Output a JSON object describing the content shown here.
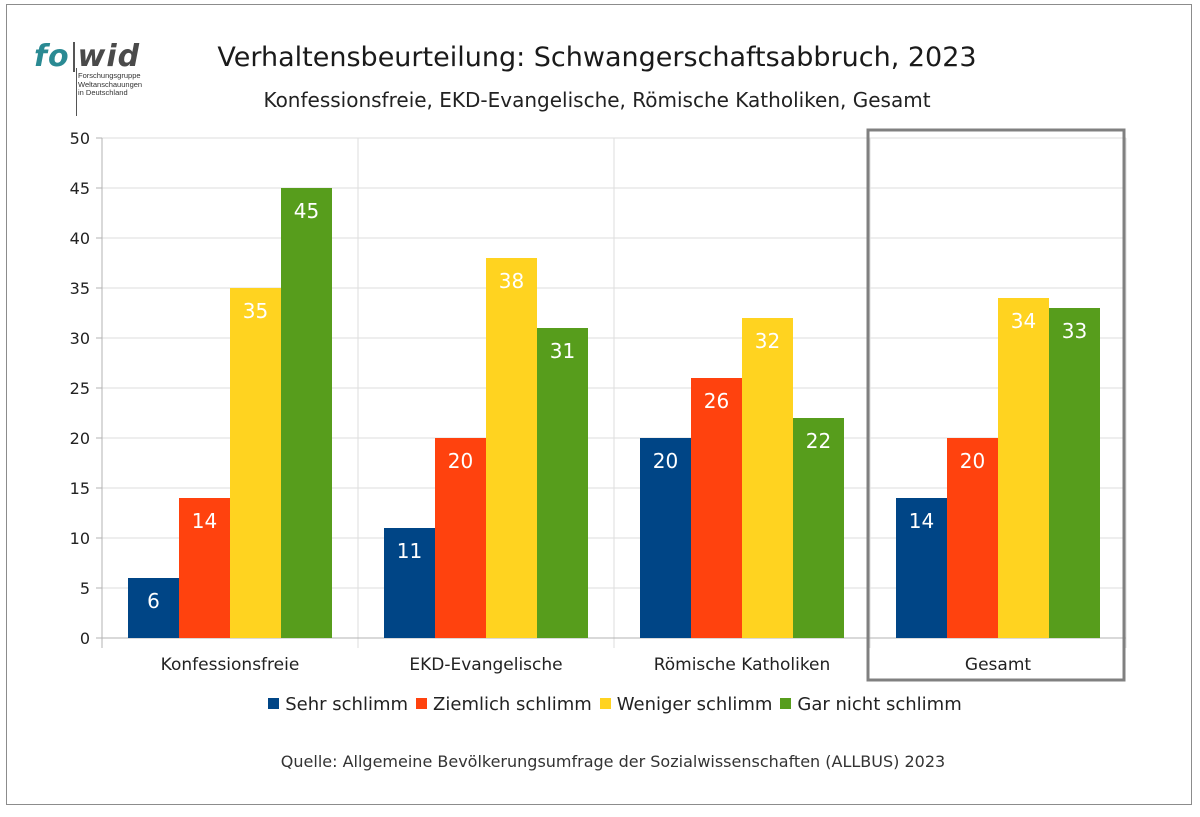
{
  "logo": {
    "word_fo": "fo",
    "word_wid": "wid",
    "tagline": [
      "Forschungsgruppe",
      "Weltanschauungen",
      "in Deutschland"
    ]
  },
  "chart_data": {
    "type": "bar",
    "title": "Verhaltensbeurteilung: Schwangerschaftsabbruch, 2023",
    "subtitle": "Konfessionsfreie, EKD-Evangelische, Römische Katholiken, Gesamt",
    "categories": [
      "Konfessionsfreie",
      "EKD-Evangelische",
      "Römische Katholiken",
      "Gesamt"
    ],
    "series": [
      {
        "name": "Sehr schlimm",
        "color": "#004586",
        "values": [
          6,
          11,
          20,
          14
        ]
      },
      {
        "name": "Ziemlich schlimm",
        "color": "#ff420e",
        "values": [
          14,
          20,
          26,
          20
        ]
      },
      {
        "name": "Weniger schlimm",
        "color": "#ffd320",
        "values": [
          35,
          38,
          32,
          34
        ]
      },
      {
        "name": "Gar nicht schlimm",
        "color": "#579d1c",
        "values": [
          45,
          31,
          22,
          33
        ]
      }
    ],
    "ylim": [
      0,
      50
    ],
    "yticks": [
      0,
      5,
      10,
      15,
      20,
      25,
      30,
      35,
      40,
      45,
      50
    ],
    "grid": true,
    "legend": "bottom",
    "highlighted_category": "Gesamt"
  },
  "source": "Quelle: Allgemeine Bevölkerungsumfrage der Sozialwissenschaften (ALLBUS) 2023"
}
